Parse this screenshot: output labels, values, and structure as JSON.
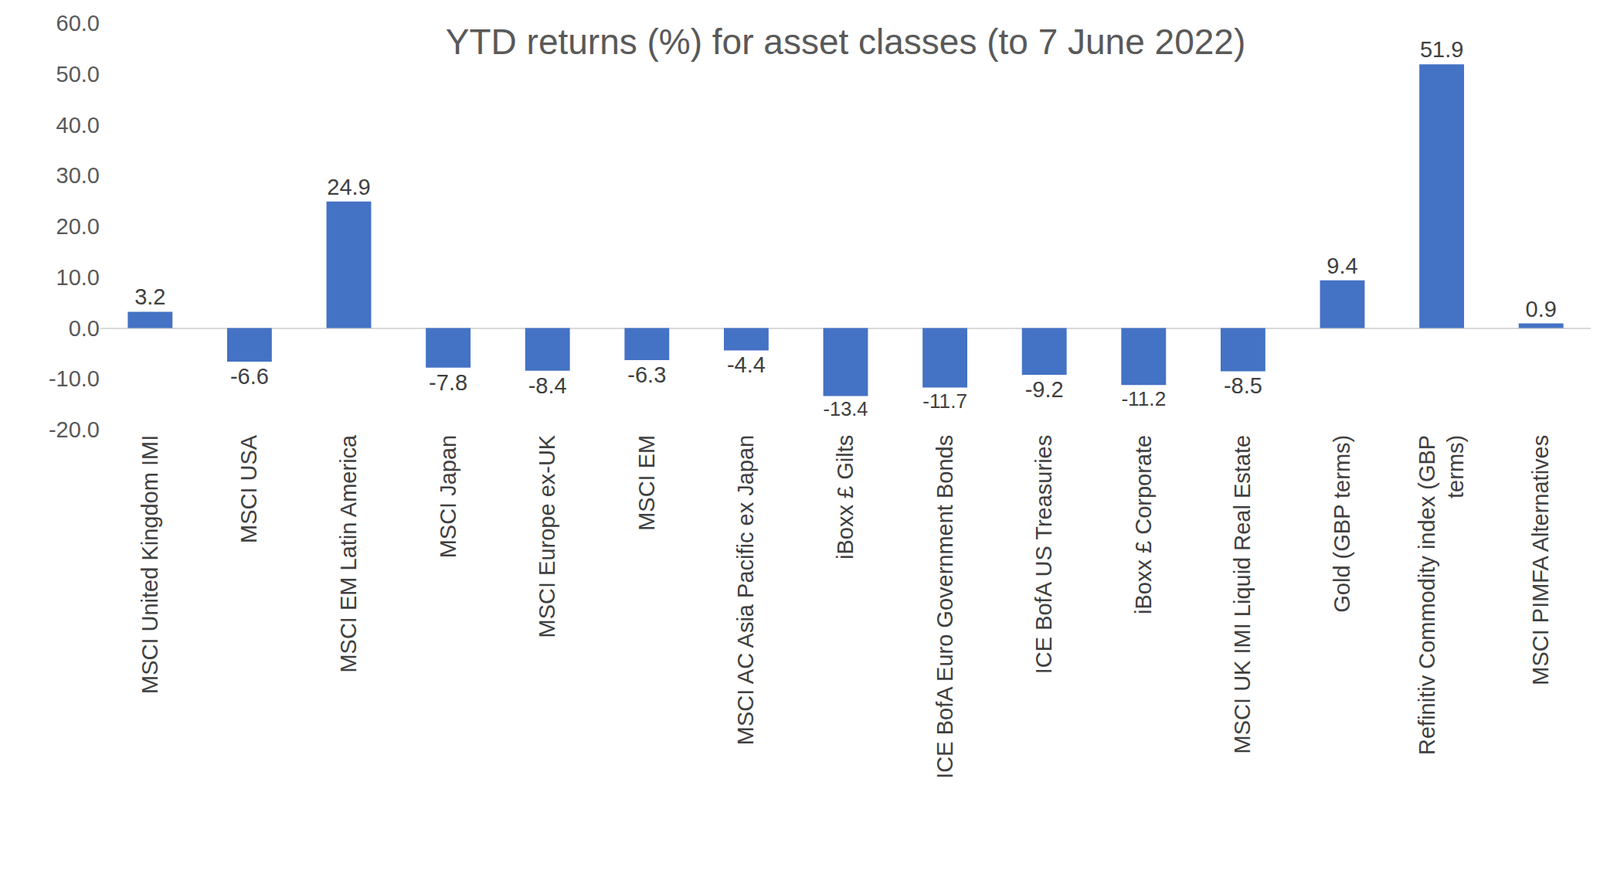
{
  "chart_data": {
    "type": "bar",
    "title": "YTD returns (%) for asset classes (to 7 June 2022)",
    "categories": [
      "MSCI United Kingdom IMI",
      "MSCI USA",
      "MSCI EM Latin America",
      "MSCI Japan",
      "MSCI Europe ex-UK",
      "MSCI EM",
      "MSCI AC Asia Pacific ex Japan",
      "iBoxx £ Gilts",
      "ICE BofA Euro Government Bonds",
      "ICE BofA US Treasuries",
      "iBoxx £ Corporate",
      "MSCI UK IMI Liquid Real Estate",
      "Gold (GBP terms)",
      "Refinitiv Commodity index (GBP terms)",
      "MSCI PIMFA Alternatives"
    ],
    "values": [
      3.2,
      -6.6,
      24.9,
      -7.8,
      -8.4,
      -6.3,
      -4.4,
      -13.4,
      -11.7,
      -9.2,
      -11.2,
      -8.5,
      9.4,
      51.9,
      0.9
    ],
    "color": "#4472c4",
    "ylim": [
      -20,
      60
    ],
    "yticks": [
      {
        "value": -20,
        "label": "-20.0"
      },
      {
        "value": -10,
        "label": "-10.0"
      },
      {
        "value": 0,
        "label": "0.0"
      },
      {
        "value": 10,
        "label": "10.0"
      },
      {
        "value": 20,
        "label": "20.0"
      },
      {
        "value": 30,
        "label": "30.0"
      },
      {
        "value": 40,
        "label": "40.0"
      },
      {
        "value": 50,
        "label": "50.0"
      },
      {
        "value": 60,
        "label": "60.0"
      }
    ],
    "grid": false,
    "data_labels": true
  }
}
